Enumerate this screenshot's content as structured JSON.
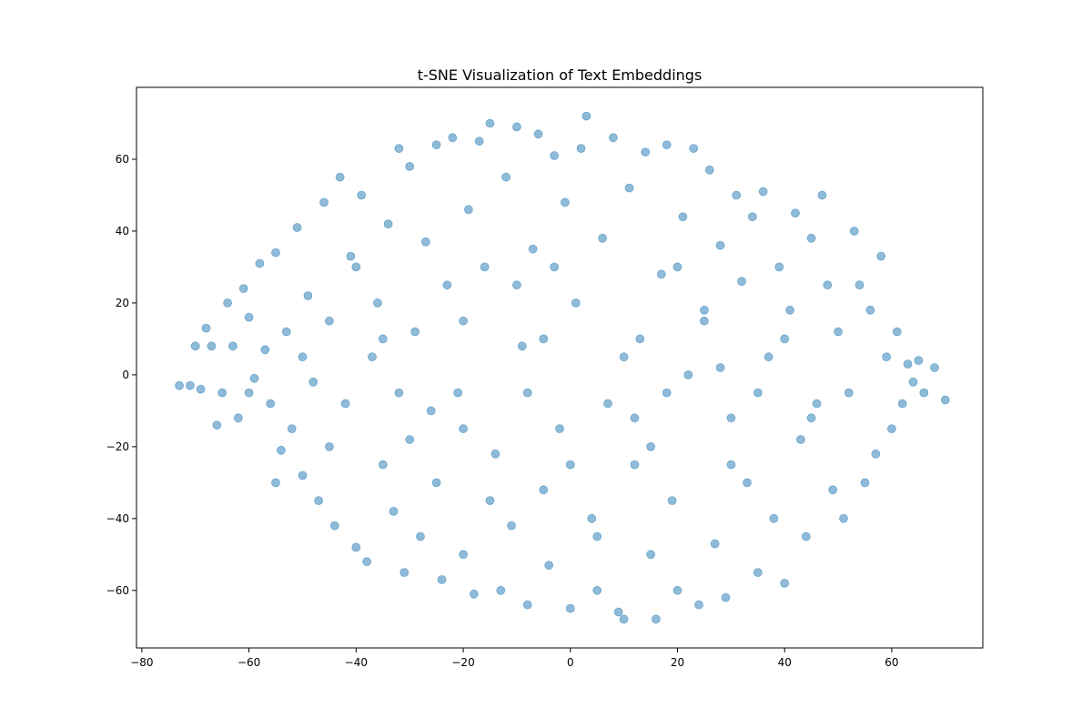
{
  "chart_data": {
    "type": "scatter",
    "title": "t-SNE Visualization of Text Embeddings",
    "xlabel": "",
    "ylabel": "",
    "xlim": [
      -81,
      77
    ],
    "ylim": [
      -76,
      80
    ],
    "xticks": [
      -80,
      -60,
      -40,
      -20,
      0,
      20,
      40,
      60
    ],
    "yticks": [
      -60,
      -40,
      -20,
      0,
      20,
      40,
      60
    ],
    "xtick_labels": [
      "−80",
      "−60",
      "−40",
      "−20",
      "0",
      "20",
      "40",
      "60"
    ],
    "ytick_labels": [
      "−60",
      "−40",
      "−20",
      "0",
      "20",
      "40",
      "60"
    ],
    "grid": false,
    "legend": "none",
    "point_color": "#1f77b4",
    "point_alpha": 0.5,
    "points": [
      [
        -73,
        -3
      ],
      [
        -71,
        -3
      ],
      [
        -69,
        -4
      ],
      [
        -70,
        8
      ],
      [
        -68,
        13
      ],
      [
        -67,
        8
      ],
      [
        -66,
        -14
      ],
      [
        -65,
        -5
      ],
      [
        -64,
        20
      ],
      [
        -63,
        8
      ],
      [
        -62,
        -12
      ],
      [
        -61,
        24
      ],
      [
        -60,
        16
      ],
      [
        -59,
        -1
      ],
      [
        -58,
        31
      ],
      [
        -57,
        7
      ],
      [
        -56,
        -8
      ],
      [
        -55,
        34
      ],
      [
        -54,
        -21
      ],
      [
        -53,
        12
      ],
      [
        -52,
        -15
      ],
      [
        -51,
        41
      ],
      [
        -50,
        -28
      ],
      [
        -49,
        22
      ],
      [
        -48,
        -2
      ],
      [
        -47,
        -35
      ],
      [
        -46,
        48
      ],
      [
        -45,
        15
      ],
      [
        -44,
        -42
      ],
      [
        -43,
        55
      ],
      [
        -42,
        -8
      ],
      [
        -41,
        33
      ],
      [
        -40,
        -48
      ],
      [
        -39,
        50
      ],
      [
        -38,
        -52
      ],
      [
        -37,
        5
      ],
      [
        -36,
        20
      ],
      [
        -35,
        -25
      ],
      [
        -34,
        42
      ],
      [
        -33,
        -38
      ],
      [
        -32,
        63
      ],
      [
        -31,
        -55
      ],
      [
        -30,
        58
      ],
      [
        -29,
        12
      ],
      [
        -28,
        -45
      ],
      [
        -27,
        37
      ],
      [
        -26,
        -10
      ],
      [
        -25,
        64
      ],
      [
        -24,
        -57
      ],
      [
        -23,
        25
      ],
      [
        -22,
        66
      ],
      [
        -21,
        -5
      ],
      [
        -20,
        -50
      ],
      [
        -19,
        46
      ],
      [
        -18,
        -61
      ],
      [
        -17,
        65
      ],
      [
        -16,
        30
      ],
      [
        -15,
        70
      ],
      [
        -14,
        -22
      ],
      [
        -13,
        -60
      ],
      [
        -12,
        55
      ],
      [
        -11,
        -42
      ],
      [
        -10,
        69
      ],
      [
        -9,
        8
      ],
      [
        -8,
        -64
      ],
      [
        -7,
        35
      ],
      [
        -6,
        67
      ],
      [
        -5,
        -32
      ],
      [
        -4,
        -53
      ],
      [
        -3,
        61
      ],
      [
        -2,
        -15
      ],
      [
        -1,
        48
      ],
      [
        0,
        -65
      ],
      [
        1,
        20
      ],
      [
        2,
        63
      ],
      [
        3,
        72
      ],
      [
        4,
        -40
      ],
      [
        5,
        -60
      ],
      [
        6,
        38
      ],
      [
        7,
        -8
      ],
      [
        8,
        66
      ],
      [
        9,
        -66
      ],
      [
        10,
        -68
      ],
      [
        11,
        52
      ],
      [
        12,
        -25
      ],
      [
        13,
        10
      ],
      [
        14,
        62
      ],
      [
        15,
        -50
      ],
      [
        16,
        -68
      ],
      [
        17,
        28
      ],
      [
        18,
        64
      ],
      [
        19,
        -35
      ],
      [
        20,
        -60
      ],
      [
        21,
        44
      ],
      [
        22,
        0
      ],
      [
        23,
        63
      ],
      [
        24,
        -64
      ],
      [
        25,
        18
      ],
      [
        26,
        57
      ],
      [
        27,
        -47
      ],
      [
        28,
        36
      ],
      [
        29,
        -62
      ],
      [
        30,
        -12
      ],
      [
        31,
        50
      ],
      [
        32,
        26
      ],
      [
        33,
        -30
      ],
      [
        34,
        44
      ],
      [
        35,
        -55
      ],
      [
        36,
        51
      ],
      [
        37,
        5
      ],
      [
        38,
        -40
      ],
      [
        39,
        30
      ],
      [
        40,
        -58
      ],
      [
        41,
        18
      ],
      [
        42,
        45
      ],
      [
        43,
        -18
      ],
      [
        44,
        -45
      ],
      [
        45,
        38
      ],
      [
        46,
        -8
      ],
      [
        47,
        50
      ],
      [
        48,
        25
      ],
      [
        49,
        -32
      ],
      [
        50,
        12
      ],
      [
        51,
        -40
      ],
      [
        52,
        -5
      ],
      [
        53,
        40
      ],
      [
        54,
        25
      ],
      [
        55,
        -30
      ],
      [
        56,
        18
      ],
      [
        57,
        -22
      ],
      [
        58,
        33
      ],
      [
        59,
        5
      ],
      [
        60,
        -15
      ],
      [
        61,
        12
      ],
      [
        62,
        -8
      ],
      [
        63,
        3
      ],
      [
        64,
        -2
      ],
      [
        65,
        4
      ],
      [
        66,
        -5
      ],
      [
        68,
        2
      ],
      [
        70,
        -7
      ],
      [
        -60,
        -5
      ],
      [
        -45,
        -20
      ],
      [
        -30,
        -18
      ],
      [
        -15,
        -35
      ],
      [
        0,
        -25
      ],
      [
        15,
        -20
      ],
      [
        30,
        -25
      ],
      [
        45,
        -12
      ],
      [
        -50,
        5
      ],
      [
        -35,
        10
      ],
      [
        -20,
        15
      ],
      [
        -5,
        10
      ],
      [
        10,
        5
      ],
      [
        25,
        15
      ],
      [
        40,
        10
      ],
      [
        -40,
        30
      ],
      [
        -25,
        -30
      ],
      [
        -10,
        25
      ],
      [
        5,
        -45
      ],
      [
        20,
        30
      ],
      [
        35,
        -5
      ],
      [
        -55,
        -30
      ],
      [
        -20,
        -15
      ],
      [
        -8,
        -5
      ],
      [
        12,
        -12
      ],
      [
        28,
        2
      ],
      [
        -32,
        -5
      ],
      [
        -3,
        30
      ],
      [
        18,
        -5
      ]
    ]
  }
}
